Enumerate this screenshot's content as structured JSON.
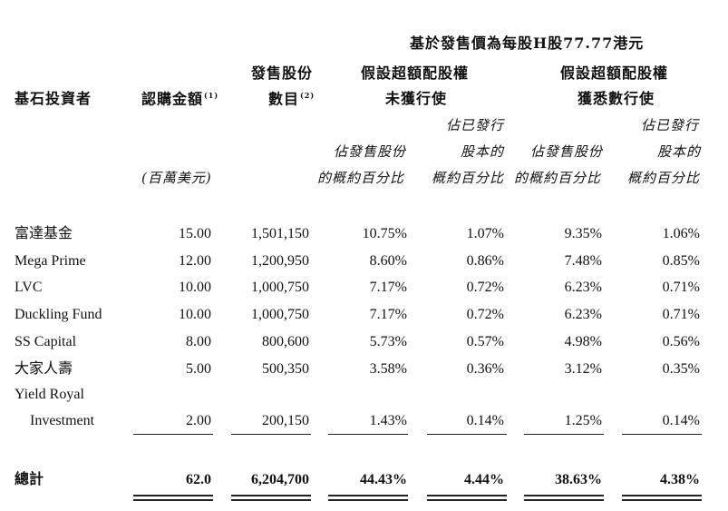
{
  "header": {
    "price_basis": "基於發售價為每股H股77.77港元",
    "col_investor": "基石投資者",
    "col_amount": "認購金額",
    "col_amount_note": "(1)",
    "col_amount_unit": "(百萬美元)",
    "col_shares_line1": "發售股份",
    "col_shares_line2": "數目",
    "col_shares_note": "(2)",
    "group_not_exercised_line1": "假設超額配股權",
    "group_not_exercised_line2": "未獲行使",
    "group_exercised_line1": "假設超額配股權",
    "group_exercised_line2": "獲悉數行使",
    "pct_offer_line1": "佔發售股份",
    "pct_offer_line2": "的概約百分比",
    "pct_issued_line1": "佔已發行",
    "pct_issued_line2": "股本的",
    "pct_issued_line3": "概約百分比"
  },
  "rows": [
    {
      "name": "富達基金",
      "amount": "15.00",
      "shares": "1,501,150",
      "a": "10.75%",
      "b": "1.07%",
      "c": "9.35%",
      "d": "1.06%"
    },
    {
      "name": "Mega Prime",
      "amount": "12.00",
      "shares": "1,200,950",
      "a": "8.60%",
      "b": "0.86%",
      "c": "7.48%",
      "d": "0.85%"
    },
    {
      "name": "LVC",
      "amount": "10.00",
      "shares": "1,000,750",
      "a": "7.17%",
      "b": "0.72%",
      "c": "6.23%",
      "d": "0.71%"
    },
    {
      "name": "Duckling Fund",
      "amount": "10.00",
      "shares": "1,000,750",
      "a": "7.17%",
      "b": "0.72%",
      "c": "6.23%",
      "d": "0.71%"
    },
    {
      "name": "SS Capital",
      "amount": "8.00",
      "shares": "800,600",
      "a": "5.73%",
      "b": "0.57%",
      "c": "4.98%",
      "d": "0.56%"
    },
    {
      "name": "大家人壽",
      "amount": "5.00",
      "shares": "500,350",
      "a": "3.58%",
      "b": "0.36%",
      "c": "3.12%",
      "d": "0.35%"
    }
  ],
  "last_row": {
    "name_line1": "Yield Royal",
    "name_line2": "Investment",
    "amount": "2.00",
    "shares": "200,150",
    "a": "1.43%",
    "b": "0.14%",
    "c": "1.25%",
    "d": "0.14%"
  },
  "total": {
    "label": "總計",
    "amount": "62.0",
    "shares": "6,204,700",
    "a": "44.43%",
    "b": "4.44%",
    "c": "38.63%",
    "d": "4.38%"
  }
}
